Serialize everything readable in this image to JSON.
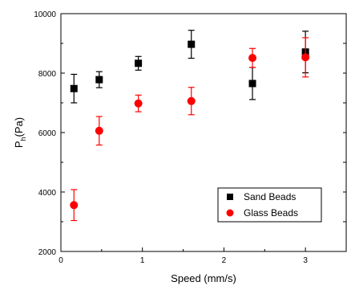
{
  "chart_data": {
    "type": "scatter",
    "xlabel": "Speed (mm/s)",
    "ylabel_main": "P",
    "ylabel_sub": "h",
    "ylabel_unit": "(Pa)",
    "xlim": [
      0,
      3.5
    ],
    "ylim": [
      2000,
      10000
    ],
    "x_ticks": [
      0,
      1,
      2,
      3
    ],
    "x_tick_labels": [
      "0",
      "1",
      "2",
      "3"
    ],
    "y_ticks": [
      2000,
      4000,
      6000,
      8000,
      10000
    ],
    "y_tick_labels": [
      "2000",
      "4000",
      "6000",
      "8000",
      "10000"
    ],
    "grid": false,
    "legend_position": "lower-right",
    "series": [
      {
        "name": "Sand Beads",
        "color": "#000000",
        "marker": "square",
        "points": [
          {
            "x": 0.16,
            "y": 7480,
            "yerr": 480
          },
          {
            "x": 0.47,
            "y": 7780,
            "yerr": 270
          },
          {
            "x": 0.95,
            "y": 8330,
            "yerr": 230
          },
          {
            "x": 1.6,
            "y": 8970,
            "yerr": 470
          },
          {
            "x": 2.35,
            "y": 7650,
            "yerr": 540
          },
          {
            "x": 3.0,
            "y": 8710,
            "yerr": 700
          }
        ]
      },
      {
        "name": "Glass Beads",
        "color": "#ff0000",
        "marker": "circle",
        "points": [
          {
            "x": 0.16,
            "y": 3560,
            "yerr": 520
          },
          {
            "x": 0.47,
            "y": 6060,
            "yerr": 480
          },
          {
            "x": 0.95,
            "y": 6980,
            "yerr": 280
          },
          {
            "x": 1.6,
            "y": 7060,
            "yerr": 460
          },
          {
            "x": 2.35,
            "y": 8510,
            "yerr": 320
          },
          {
            "x": 3.0,
            "y": 8530,
            "yerr": 660
          }
        ]
      }
    ]
  }
}
